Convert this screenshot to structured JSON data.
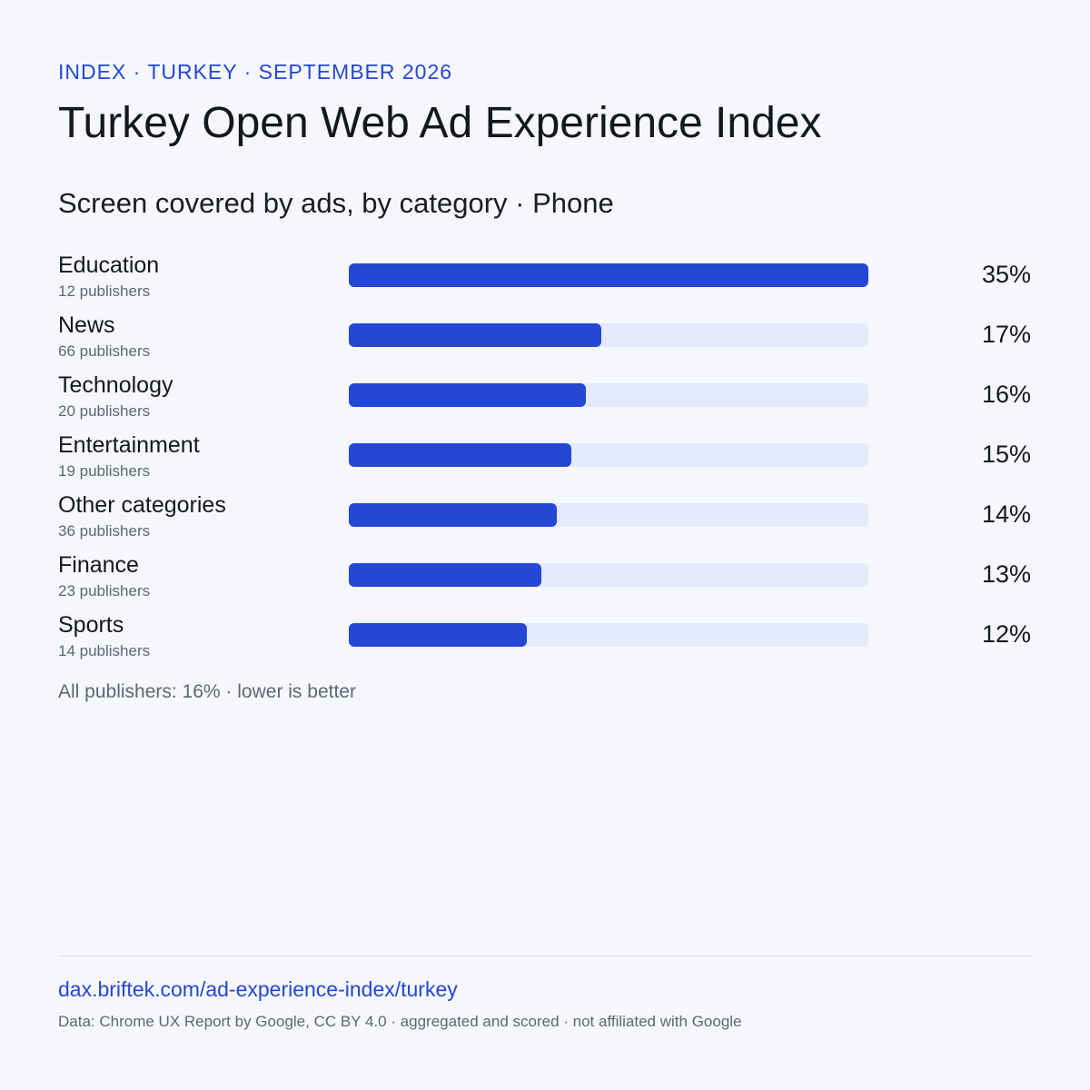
{
  "header": {
    "eyebrow": "INDEX · TURKEY · SEPTEMBER 2026",
    "title": "Turkey Open Web Ad Experience Index",
    "subtitle": "Screen covered by ads, by category · Phone"
  },
  "chart_data": {
    "type": "bar",
    "orientation": "horizontal",
    "title": "Screen covered by ads, by category · Phone",
    "xlim": [
      0,
      35
    ],
    "categories": [
      "Education",
      "News",
      "Technology",
      "Entertainment",
      "Other categories",
      "Finance",
      "Sports"
    ],
    "publisher_counts": [
      "12 publishers",
      "66 publishers",
      "20 publishers",
      "19 publishers",
      "36 publishers",
      "23 publishers",
      "14 publishers"
    ],
    "values": [
      35,
      17,
      16,
      15,
      14,
      13,
      12
    ],
    "value_labels": [
      "35%",
      "17%",
      "16%",
      "15%",
      "14%",
      "13%",
      "12%"
    ],
    "colors": {
      "bar": "#2447d6",
      "track": "#e4e9fb"
    }
  },
  "footnote": "All publishers: 16% · lower is better",
  "footer": {
    "link": "dax.briftek.com/ad-experience-index/turkey",
    "source": "Data: Chrome UX Report by Google, CC BY 4.0 · aggregated and scored · not affiliated with Google"
  }
}
